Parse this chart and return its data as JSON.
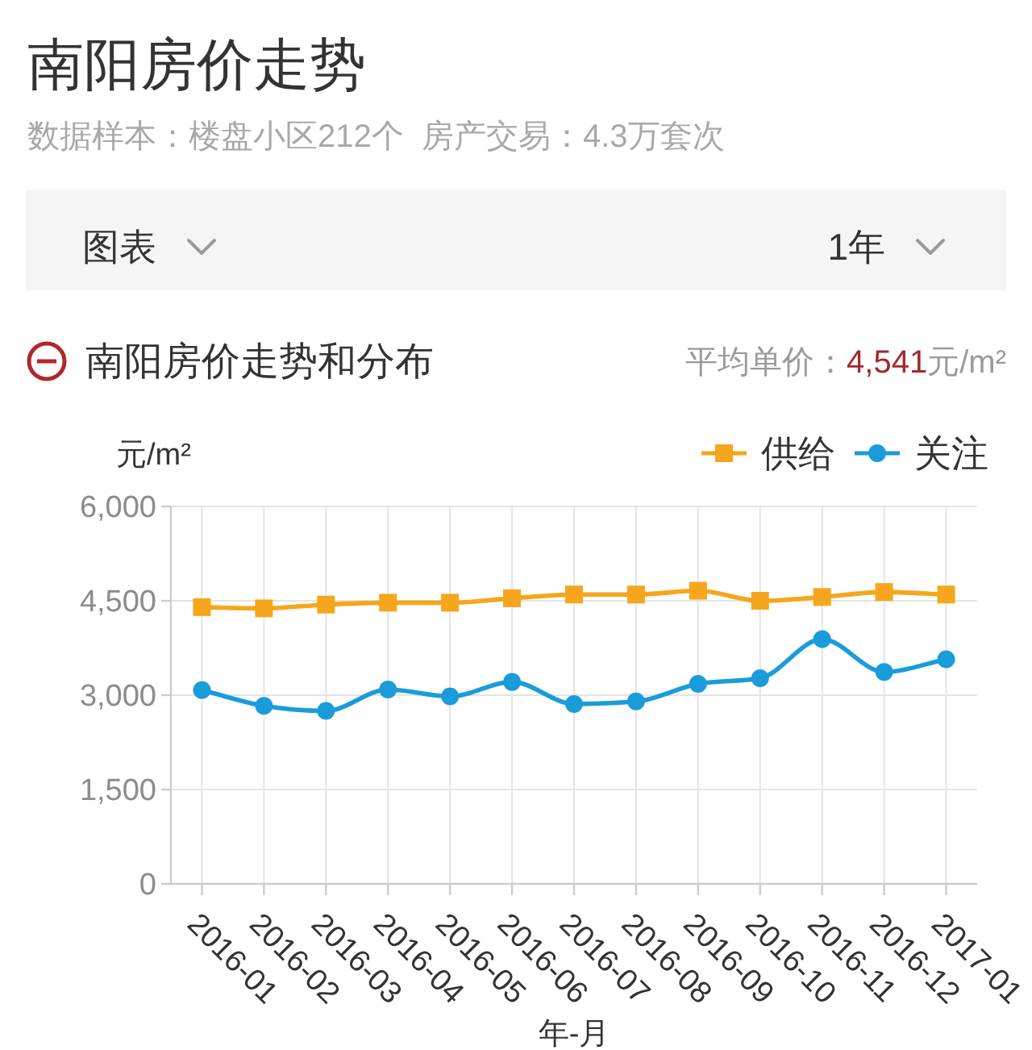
{
  "chart_data": {
    "type": "line",
    "title": "南阳房价走势",
    "subtitle": "数据样本：楼盘小区212个  房产交易：4.3万套次",
    "annotations": [
      "图表",
      "1年",
      "南阳房价走势和分布",
      "平均单价：4,541元/m²"
    ],
    "xlabel": "年-月",
    "ylabel": "元/m²",
    "categories": [
      "2016-01",
      "2016-02",
      "2016-03",
      "2016-04",
      "2016-05",
      "2016-06",
      "2016-07",
      "2016-08",
      "2016-09",
      "2016-10",
      "2016-11",
      "2016-12",
      "2017-01"
    ],
    "series": [
      {
        "name": "供给",
        "color": "#f6a61c",
        "marker": "square",
        "values": [
          4400,
          4380,
          4440,
          4470,
          4470,
          4540,
          4600,
          4600,
          4660,
          4500,
          4560,
          4640,
          4600
        ]
      },
      {
        "name": "关注",
        "color": "#1b9cda",
        "marker": "circle",
        "values": [
          3080,
          2830,
          2750,
          3090,
          2980,
          3210,
          2860,
          2900,
          3180,
          3270,
          3890,
          3370,
          3570
        ]
      }
    ],
    "ylim": [
      0,
      6000
    ],
    "yticks": [
      0,
      {
        "value": 1500,
        "label": "1,500"
      },
      {
        "value": 3000,
        "label": "3,000"
      },
      {
        "value": 4500,
        "label": "4,500"
      },
      {
        "value": 6000,
        "label": "6,000"
      }
    ],
    "grid": true,
    "legend": "top right",
    "line_style": "solid"
  }
}
